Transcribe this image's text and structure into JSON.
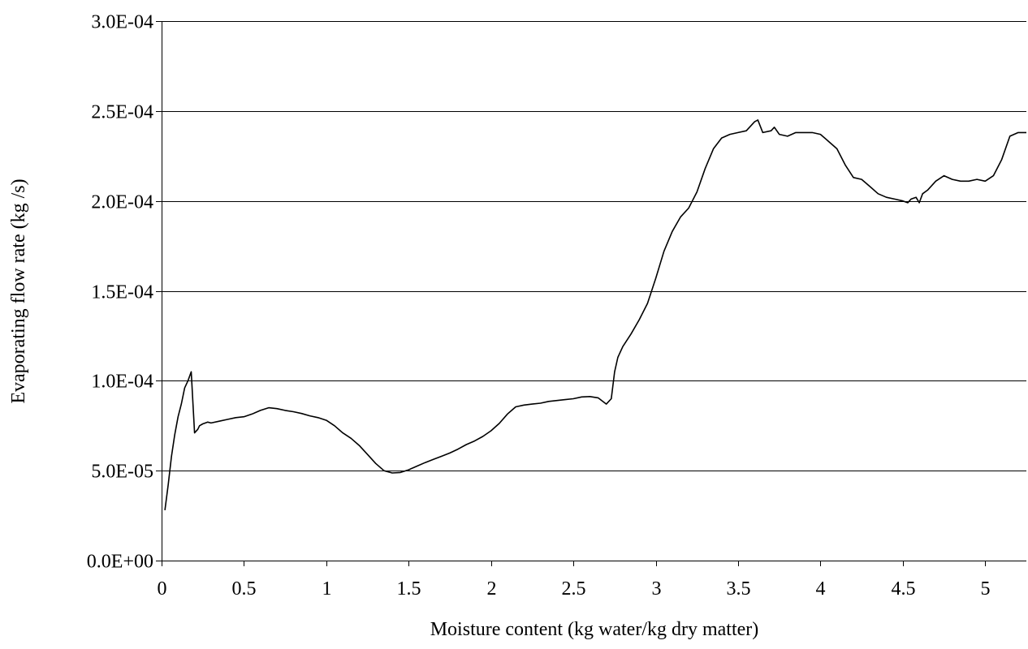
{
  "chart_data": {
    "type": "line",
    "title": "",
    "xlabel": "Moisture content (kg water/kg dry matter)",
    "ylabel": "Evaporating flow rate (kg /s)",
    "xlim": [
      0,
      5.25
    ],
    "ylim": [
      0,
      0.0003
    ],
    "x_ticks": [
      0,
      0.5,
      1,
      1.5,
      2,
      2.5,
      3,
      3.5,
      4,
      4.5,
      5
    ],
    "x_tick_labels": [
      "0",
      "0.5",
      "1",
      "1.5",
      "2",
      "2.5",
      "3",
      "3.5",
      "4",
      "4.5",
      "5"
    ],
    "y_ticks": [
      0,
      5e-05,
      0.0001,
      0.00015,
      0.0002,
      0.00025,
      0.0003
    ],
    "y_tick_labels": [
      "0.0E+00",
      "5.0E-05",
      "1.0E-04",
      "1.5E-04",
      "2.0E-04",
      "2.5E-04",
      "3.0E-04"
    ],
    "grid": "horizontal",
    "legend": "none",
    "line_color": "#000000",
    "series": [
      {
        "x": [
          0.02,
          0.04,
          0.06,
          0.08,
          0.1,
          0.12,
          0.14,
          0.16,
          0.18,
          0.2,
          0.22,
          0.23,
          0.25,
          0.28,
          0.3,
          0.35,
          0.4,
          0.45,
          0.5,
          0.55,
          0.6,
          0.65,
          0.7,
          0.75,
          0.8,
          0.85,
          0.9,
          0.95,
          1.0,
          1.05,
          1.1,
          1.15,
          1.2,
          1.25,
          1.3,
          1.35,
          1.4,
          1.45,
          1.5,
          1.55,
          1.6,
          1.65,
          1.7,
          1.75,
          1.8,
          1.85,
          1.9,
          1.95,
          2.0,
          2.05,
          2.1,
          2.15,
          2.2,
          2.25,
          2.3,
          2.35,
          2.4,
          2.45,
          2.5,
          2.55,
          2.6,
          2.65,
          2.7,
          2.73,
          2.75,
          2.77,
          2.8,
          2.85,
          2.9,
          2.95,
          3.0,
          3.05,
          3.1,
          3.15,
          3.2,
          3.25,
          3.3,
          3.35,
          3.4,
          3.45,
          3.5,
          3.55,
          3.6,
          3.62,
          3.65,
          3.7,
          3.72,
          3.75,
          3.8,
          3.85,
          3.9,
          3.95,
          4.0,
          4.05,
          4.1,
          4.15,
          4.2,
          4.25,
          4.3,
          4.35,
          4.4,
          4.45,
          4.5,
          4.53,
          4.55,
          4.58,
          4.6,
          4.62,
          4.65,
          4.7,
          4.75,
          4.8,
          4.85,
          4.9,
          4.95,
          5.0,
          5.05,
          5.1,
          5.15,
          5.2,
          5.25
        ],
        "y": [
          2.8e-05,
          4.2e-05,
          5.8e-05,
          7e-05,
          8e-05,
          8.7e-05,
          9.6e-05,
          0.0001,
          0.000105,
          7.1e-05,
          7.3e-05,
          7.5e-05,
          7.6e-05,
          7.7e-05,
          7.65e-05,
          7.75e-05,
          7.85e-05,
          7.95e-05,
          8e-05,
          8.15e-05,
          8.35e-05,
          8.5e-05,
          8.45e-05,
          8.35e-05,
          8.28e-05,
          8.18e-05,
          8.05e-05,
          7.95e-05,
          7.8e-05,
          7.5e-05,
          7.1e-05,
          6.8e-05,
          6.4e-05,
          5.9e-05,
          5.4e-05,
          5e-05,
          4.87e-05,
          4.9e-05,
          5.05e-05,
          5.25e-05,
          5.45e-05,
          5.63e-05,
          5.8e-05,
          5.98e-05,
          6.2e-05,
          6.45e-05,
          6.65e-05,
          6.9e-05,
          7.22e-05,
          7.63e-05,
          8.15e-05,
          8.55e-05,
          8.65e-05,
          8.7e-05,
          8.75e-05,
          8.85e-05,
          8.9e-05,
          8.95e-05,
          9e-05,
          9.1e-05,
          9.12e-05,
          9.05e-05,
          8.7e-05,
          9e-05,
          0.000105,
          0.000113,
          0.000119,
          0.000126,
          0.000134,
          0.000143,
          0.000157,
          0.000172,
          0.000183,
          0.000191,
          0.000196,
          0.000205,
          0.000218,
          0.000229,
          0.000235,
          0.000237,
          0.000238,
          0.000239,
          0.000244,
          0.000245,
          0.000238,
          0.000239,
          0.000241,
          0.000237,
          0.000236,
          0.000238,
          0.000238,
          0.000238,
          0.000237,
          0.000233,
          0.000229,
          0.00022,
          0.000213,
          0.000212,
          0.000208,
          0.000204,
          0.000202,
          0.000201,
          0.0002,
          0.000199,
          0.000201,
          0.000202,
          0.000199,
          0.000204,
          0.000206,
          0.000211,
          0.000214,
          0.000212,
          0.000211,
          0.000211,
          0.000212,
          0.000211,
          0.000214,
          0.000223,
          0.000236,
          0.000238,
          0.000238
        ]
      }
    ]
  }
}
